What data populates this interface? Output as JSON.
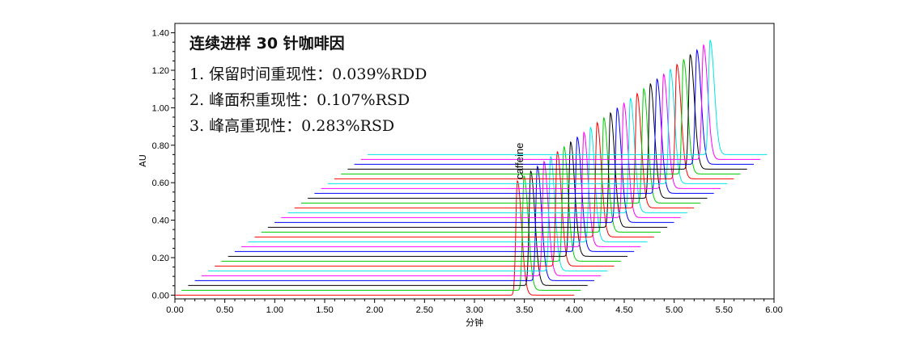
{
  "chart_data": {
    "type": "line",
    "title": "连续进样 30 针咖啡因",
    "annotations": [
      "1. 保留时间重现性：0.039%RDD",
      "2. 峰面积重现性：0.107%RSD",
      "3. 峰高重现性：0.283%RSD"
    ],
    "peak_label": "caffeine",
    "xlabel": "分钟",
    "ylabel": "AU",
    "xlim": [
      0,
      6
    ],
    "ylim": [
      -0.02,
      1.45
    ],
    "x_ticks": [
      "0.00",
      "0.50",
      "1.00",
      "1.50",
      "2.00",
      "2.50",
      "3.00",
      "3.50",
      "4.00",
      "4.50",
      "5.00",
      "5.50",
      "6.00"
    ],
    "y_ticks": [
      "0.00",
      "0.20",
      "0.40",
      "0.60",
      "0.80",
      "1.00",
      "1.20",
      "1.40"
    ],
    "overlay": "waterfall",
    "series_count": 30,
    "series_colors": [
      "#ff0000",
      "#00cc00",
      "#000000",
      "#0000ff",
      "#ff00ff",
      "#00e5e5"
    ],
    "first_trace": {
      "x_start": 0.0,
      "x_end": 4.0,
      "baseline": 0.0,
      "peak_x": 3.43,
      "peak_height": 0.61
    },
    "last_trace": {
      "x_start": 1.93,
      "x_end": 5.93,
      "baseline": 0.75,
      "peak_x": 5.36,
      "peak_height": 0.61
    }
  }
}
